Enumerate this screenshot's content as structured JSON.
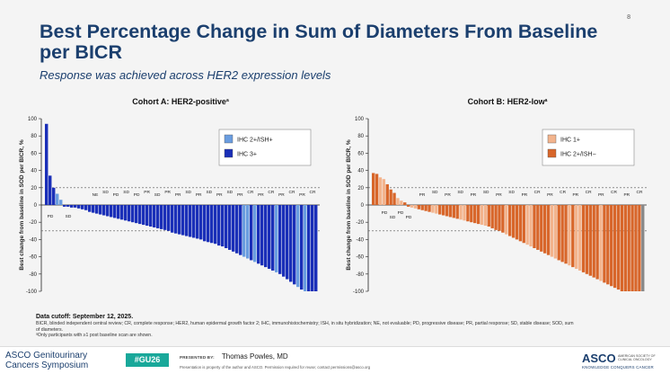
{
  "slide": {
    "page_number": "8",
    "title": "Best Percentage Change in Sum of Diameters From Baseline per BICR",
    "subtitle": "Response was achieved across HER2 expression levels"
  },
  "chart_data": [
    {
      "type": "bar",
      "title": "Cohort A: HER2-positive",
      "title_superscript": "a",
      "ylabel": "Best change from baseline in SOD per BICR, %",
      "ylim": [
        -100,
        100
      ],
      "yticks": [
        100,
        80,
        60,
        40,
        20,
        0,
        -20,
        -40,
        -60,
        -80,
        -100
      ],
      "reference_lines": [
        20,
        -30
      ],
      "legend": [
        {
          "label": "IHC 2+/ISH+",
          "color": "#6a9de0"
        },
        {
          "label": "IHC 3+",
          "color": "#1a2fb8"
        }
      ],
      "series_name_by_code": {
        "L": "IHC 2+/ISH+",
        "D": "IHC 3+"
      },
      "values": [
        94,
        34,
        20,
        13,
        6,
        -2,
        -2,
        -3,
        -3,
        -4,
        -5,
        -6,
        -8,
        -9,
        -10,
        -11,
        -12,
        -13,
        -14,
        -15,
        -16,
        -17,
        -18,
        -19,
        -20,
        -21,
        -22,
        -23,
        -24,
        -25,
        -26,
        -27,
        -28,
        -29,
        -30,
        -32,
        -33,
        -34,
        -35,
        -36,
        -37,
        -38,
        -39,
        -40,
        -42,
        -43,
        -44,
        -45,
        -47,
        -48,
        -50,
        -52,
        -54,
        -56,
        -58,
        -60,
        -62,
        -64,
        -66,
        -68,
        -70,
        -72,
        -74,
        -76,
        -78,
        -80,
        -83,
        -86,
        -89,
        -92,
        -95,
        -98,
        -100,
        -100,
        -100,
        -100
      ],
      "groups": "DDDLLDDDDDDDDDDDDDDDDDDDDDDDDDDDDDDDDDDDDDDDDDDDDDDDDDDLLDLDDDDDLDDDDDLDLDDDD",
      "response_labels": [
        "PD",
        "SD",
        "NE",
        "SD",
        "PD",
        "SD",
        "PD",
        "PR",
        "SD",
        "PR",
        "PR",
        "SD",
        "PR",
        "SD",
        "PR",
        "SD",
        "PR",
        "CR",
        "PR",
        "CR",
        "PR",
        "CR",
        "PR",
        "CR"
      ]
    },
    {
      "type": "bar",
      "title": "Cohort B: HER2-low",
      "title_superscript": "a",
      "ylabel": "Best change from baseline in SOD per BICR, %",
      "ylim": [
        -100,
        100
      ],
      "yticks": [
        100,
        80,
        60,
        40,
        20,
        0,
        -20,
        -40,
        -60,
        -80,
        -100
      ],
      "reference_lines": [
        20,
        -30
      ],
      "legend": [
        {
          "label": "IHC 1+",
          "color": "#f3b48d"
        },
        {
          "label": "IHC 2+/ISH−",
          "color": "#d8662a"
        }
      ],
      "series_name_by_code": {
        "L": "IHC 1+",
        "D": "IHC 2+/ISH−"
      },
      "values": [
        37,
        36,
        32,
        30,
        24,
        18,
        14,
        8,
        5,
        3,
        -2,
        -3,
        -4,
        -5,
        -6,
        -7,
        -8,
        -9,
        -10,
        -11,
        -12,
        -13,
        -14,
        -15,
        -16,
        -17,
        -18,
        -19,
        -20,
        -21,
        -22,
        -23,
        -24,
        -25,
        -27,
        -29,
        -30,
        -32,
        -34,
        -36,
        -38,
        -40,
        -42,
        -44,
        -46,
        -48,
        -50,
        -52,
        -54,
        -56,
        -58,
        -60,
        -62,
        -64,
        -66,
        -68,
        -70,
        -72,
        -74,
        -76,
        -78,
        -80,
        -82,
        -84,
        -86,
        -88,
        -90,
        -92,
        -94,
        -96,
        -98,
        -100,
        -100,
        -100,
        -100,
        -100,
        -100,
        -100
      ],
      "groups": "DDLLDDDLLDDLLDDDDLLDDDDDDLLDDDDLLDDDDDLDDDDDLLDDDDDLLDDDLDLLDDDDDLDDDDDDDDDDD",
      "response_labels": [
        "PD",
        "SD",
        "PD",
        "PD",
        "PR",
        "SD",
        "PR",
        "SD",
        "PR",
        "SD",
        "PR",
        "SD",
        "PR",
        "CR",
        "PR",
        "CR",
        "PR",
        "CR",
        "PR",
        "CR",
        "PR",
        "CR"
      ]
    }
  ],
  "footnotes": {
    "cutoff": "Data cutoff: September 12, 2025.",
    "abbreviations": "BICR, blinded independent central review; CR, complete response; HER2, human epidermal growth factor 2; IHC, immunohistochemistry; ISH, in situ hybridization; NE, not evaluable; PD, progressive disease; PR, partial response; SD, stable disease; SOD, sum of diameters.",
    "note_a": "ᵃOnly participants with ≥1 post baseline scan are shown."
  },
  "footer": {
    "logo_line1": "ASCO Genitourinary",
    "logo_line2": "Cancers Symposium",
    "hashtag": "#GU26",
    "presented_label": "PRESENTED BY:",
    "presenter": "Thomas Powles, MD",
    "property_note": "Presentation is property of the author and ASCO. Permission required for reuse; contact permissions@asco.org",
    "asco_logo": "ASCO",
    "society": "AMERICAN SOCIETY OF CLINICAL ONCOLOGY",
    "tagline": "KNOWLEDGE CONQUERS CANCER"
  }
}
